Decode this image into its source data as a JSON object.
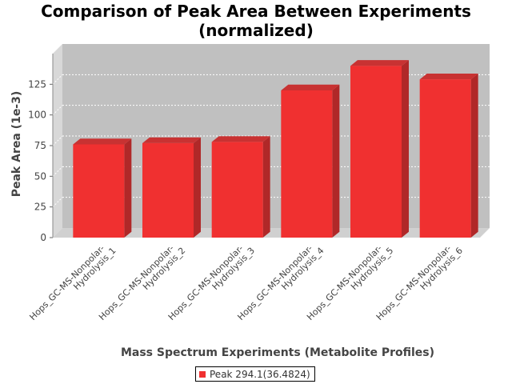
{
  "chart_data": {
    "type": "bar",
    "title_line1": "Comparison of Peak Area Between Experiments",
    "title_line2": "(normalized)",
    "xlabel": "Mass Spectrum Experiments (Metabolite Profiles)",
    "ylabel": "Peak Area (1e-3)",
    "categories": [
      [
        "Hops_GC-MS-Nonpolar-",
        "Hydrolysis_1"
      ],
      [
        "Hops_GC-MS-Nonpolar-",
        "Hydrolysis_2"
      ],
      [
        "Hops_GC-MS-Nonpolar-",
        "Hydrolysis_3"
      ],
      [
        "Hops_GC-MS-Nonpolar-",
        "Hydrolysis_4"
      ],
      [
        "Hops_GC-MS-Nonpolar-",
        "Hydrolysis_5"
      ],
      [
        "Hops_GC-MS-Nonpolar-",
        "Hydrolysis_6"
      ]
    ],
    "series": [
      {
        "name": "Peak 294.1(36.4824)",
        "values": [
          76,
          77,
          78,
          120,
          140,
          129
        ]
      }
    ],
    "ylim": [
      0,
      150
    ],
    "yticks": [
      "0",
      "25",
      "50",
      "75",
      "100",
      "125"
    ],
    "grid": true,
    "legend_position": "bottom",
    "colors": {
      "bar": "#f03030",
      "bar_side": "#b02828",
      "bar_top": "#c83232",
      "plot_bg": "#c0c0c0",
      "wall": "#d8d8d8",
      "floor": "#d0d0d0"
    }
  }
}
